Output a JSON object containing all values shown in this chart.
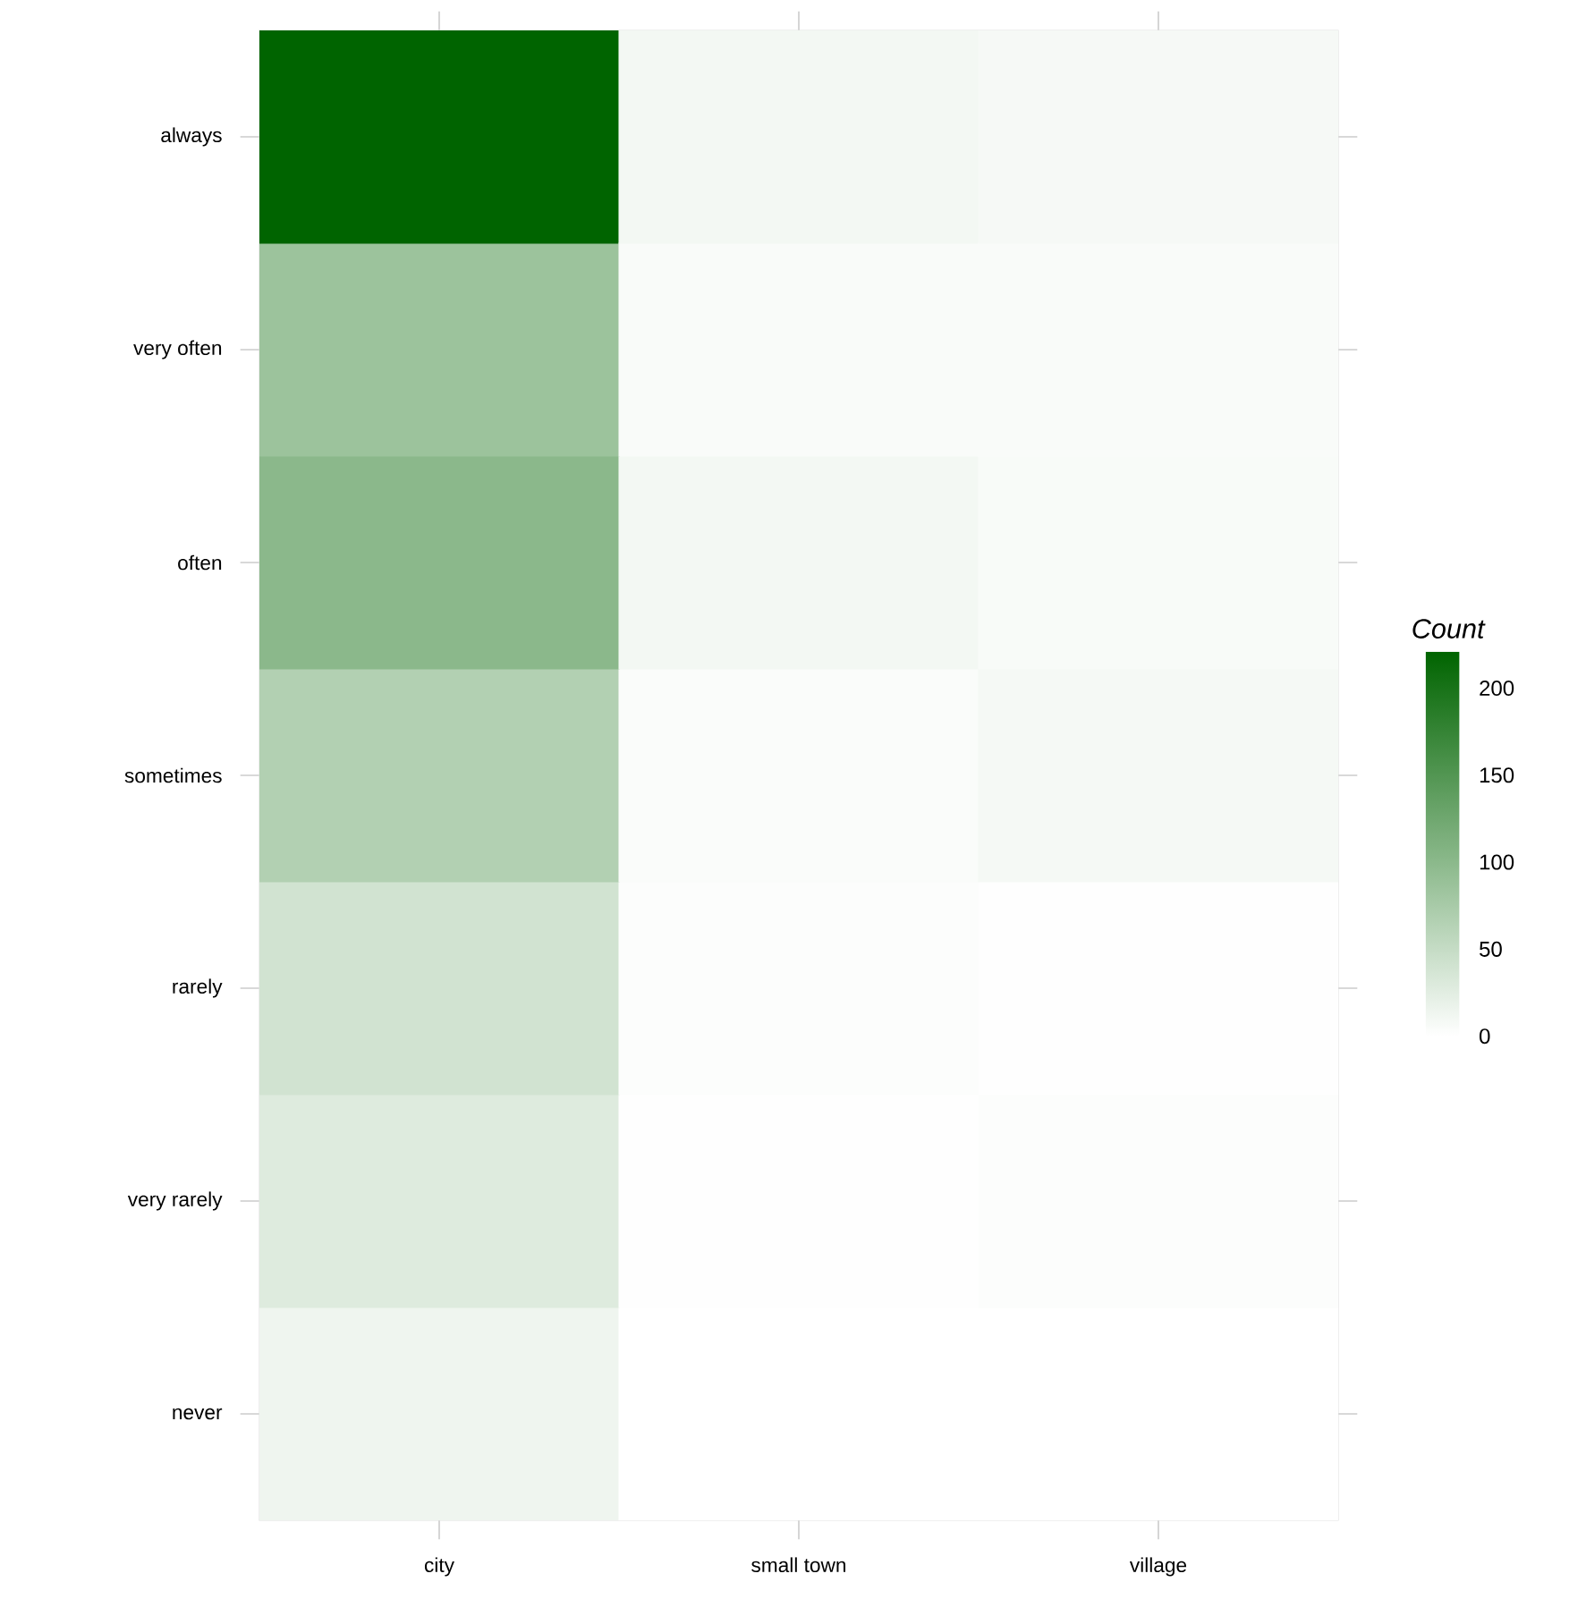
{
  "chart_data": {
    "type": "heatmap",
    "clabel": "Count",
    "categories": [
      "city",
      "small town",
      "village"
    ],
    "y_categories": [
      "always",
      "very often",
      "often",
      "sometimes",
      "rarely",
      "very rarely",
      "never"
    ],
    "cells": [
      [
        221,
        10,
        8
      ],
      [
        85,
        5,
        5
      ],
      [
        100,
        10,
        6
      ],
      [
        66,
        4,
        9
      ],
      [
        40,
        3,
        1
      ],
      [
        28,
        1,
        3
      ],
      [
        14,
        0,
        0
      ]
    ],
    "clim": [
      0,
      221
    ],
    "cticks": [
      0,
      50,
      100,
      150,
      200
    ]
  }
}
